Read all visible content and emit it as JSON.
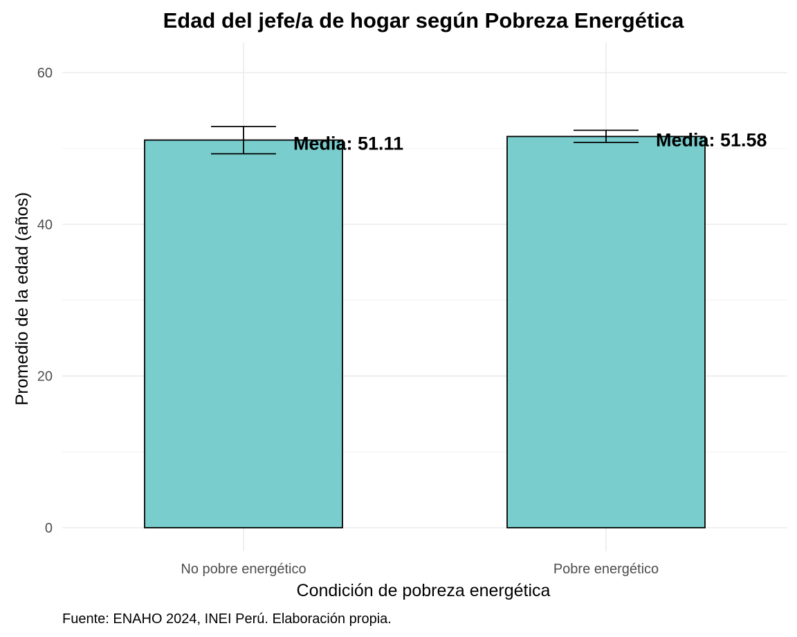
{
  "chart_data": {
    "type": "bar",
    "title": "Edad del jefe/a de hogar según Pobreza Energética",
    "xlabel": "Condición de pobreza energética",
    "ylabel": "Promedio de la edad (años)",
    "caption": "Fuente: ENAHO 2024, INEI Perú. Elaboración propia.",
    "categories": [
      "No pobre energético",
      "Pobre energético"
    ],
    "values": [
      51.11,
      51.58
    ],
    "error_bars": [
      {
        "low": 49.3,
        "high": 52.9
      },
      {
        "low": 50.8,
        "high": 52.4
      }
    ],
    "data_labels": [
      "Media: 51.11",
      "Media: 51.58"
    ],
    "yticks": [
      0,
      20,
      40,
      60
    ],
    "ylim": [
      -2.5,
      64
    ],
    "grid": true,
    "colors": {
      "bar_fill": "#7acdcd",
      "bar_border": "#000000"
    }
  }
}
